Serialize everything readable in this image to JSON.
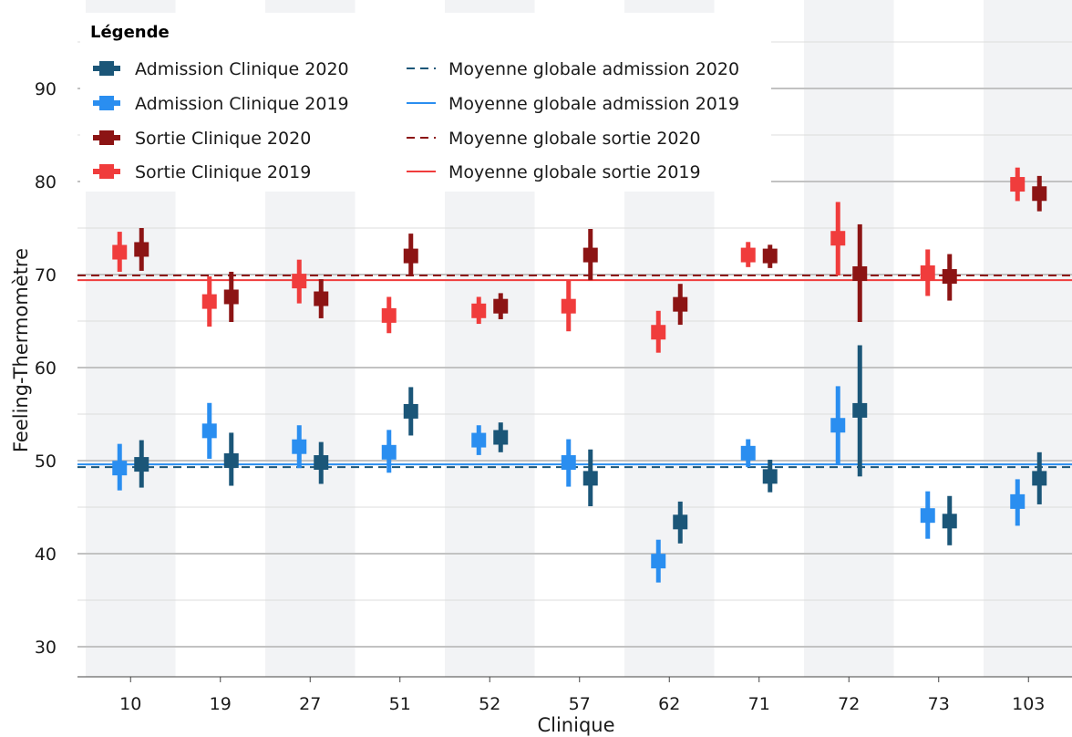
{
  "chart_data": {
    "type": "scatter",
    "xlabel": "Clinique",
    "ylabel": "Feeling-Thermomètre",
    "ylim": [
      27,
      97
    ],
    "yticks": [
      30,
      40,
      50,
      60,
      70,
      80,
      90
    ],
    "categories": [
      "10",
      "19",
      "27",
      "51",
      "52",
      "57",
      "62",
      "71",
      "72",
      "73",
      "103"
    ],
    "grid": true,
    "legend": {
      "title": "Légende",
      "placement": "top-left"
    },
    "series": [
      {
        "name": "Admission Clinique 2020",
        "kind": "point-interval",
        "color": "#1b5678",
        "offset": 1,
        "values": [
          49.6,
          50.0,
          49.8,
          55.3,
          52.5,
          48.1,
          43.4,
          48.3,
          55.4,
          43.5,
          48.1
        ],
        "low": [
          47.1,
          47.3,
          47.5,
          52.7,
          50.9,
          45.1,
          41.1,
          46.6,
          48.3,
          40.9,
          45.3
        ],
        "high": [
          52.2,
          53.0,
          52.0,
          57.9,
          54.1,
          51.2,
          45.6,
          50.1,
          62.4,
          46.2,
          50.9
        ]
      },
      {
        "name": "Admission Clinique 2019",
        "kind": "point-interval",
        "color": "#2a8ef0",
        "offset": -1,
        "values": [
          49.2,
          53.2,
          51.5,
          50.9,
          52.2,
          49.8,
          39.2,
          50.8,
          53.8,
          44.1,
          45.6
        ],
        "low": [
          46.8,
          50.2,
          49.2,
          48.7,
          50.6,
          47.2,
          36.9,
          49.3,
          49.6,
          41.6,
          43.0
        ],
        "high": [
          51.8,
          56.2,
          53.8,
          53.3,
          53.8,
          52.3,
          41.5,
          52.3,
          58.0,
          46.7,
          48.0
        ]
      },
      {
        "name": "Sortie Clinique 2020",
        "kind": "point-interval",
        "color": "#8c1414",
        "offset": 1,
        "values": [
          72.7,
          67.6,
          67.4,
          72.0,
          66.6,
          72.1,
          66.8,
          72.0,
          70.1,
          69.8,
          78.7
        ],
        "low": [
          70.4,
          64.9,
          65.3,
          69.8,
          65.2,
          69.4,
          64.6,
          70.7,
          64.9,
          67.2,
          76.8
        ],
        "high": [
          75.0,
          70.3,
          69.5,
          74.4,
          68.0,
          74.9,
          69.0,
          73.2,
          75.4,
          72.2,
          80.6
        ]
      },
      {
        "name": "Sortie Clinique 2019",
        "kind": "point-interval",
        "color": "#f03c3c",
        "offset": -1,
        "values": [
          72.4,
          67.1,
          69.3,
          65.6,
          66.1,
          66.6,
          63.8,
          72.1,
          73.9,
          70.2,
          79.7
        ],
        "low": [
          70.3,
          64.4,
          66.9,
          63.7,
          64.7,
          63.9,
          61.6,
          70.8,
          69.9,
          67.7,
          77.9
        ],
        "high": [
          74.6,
          69.8,
          71.6,
          67.6,
          67.6,
          69.4,
          66.1,
          73.5,
          77.8,
          72.7,
          81.5
        ]
      },
      {
        "name": "Moyenne globale admission 2020",
        "kind": "hline",
        "color": "#1b5678",
        "dash": "dashed",
        "value": 49.3
      },
      {
        "name": "Moyenne globale admission 2019",
        "kind": "hline",
        "color": "#2a8ef0",
        "dash": "solid",
        "value": 49.6
      },
      {
        "name": "Moyenne globale sortie 2020",
        "kind": "hline",
        "color": "#8c1414",
        "dash": "dashed",
        "value": 69.9
      },
      {
        "name": "Moyenne globale sortie 2019",
        "kind": "hline",
        "color": "#f03c3c",
        "dash": "solid",
        "value": 69.4
      }
    ]
  }
}
